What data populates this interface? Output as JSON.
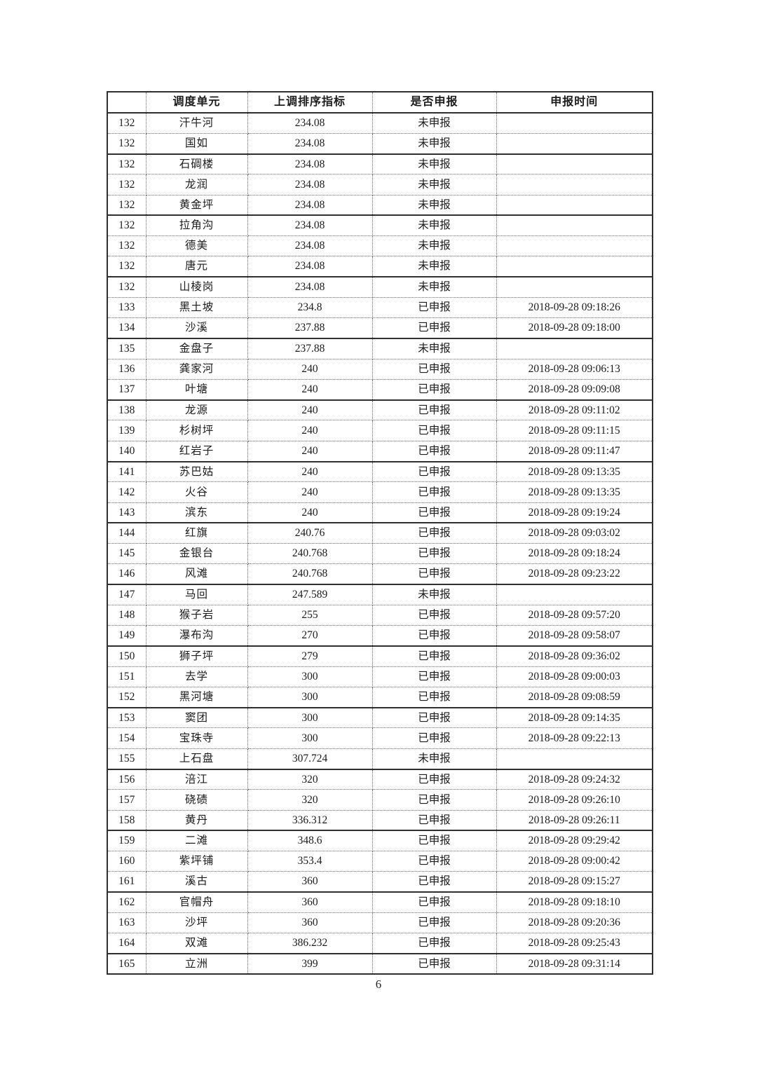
{
  "page": {
    "number": "6"
  },
  "table": {
    "headers": [
      "",
      "调度单元",
      "上调排序指标",
      "是否申报",
      "申报时间"
    ],
    "rows": [
      [
        "132",
        "汗牛河",
        "234.08",
        "未申报",
        ""
      ],
      [
        "132",
        "国如",
        "234.08",
        "未申报",
        ""
      ],
      [
        "132",
        "石碉楼",
        "234.08",
        "未申报",
        ""
      ],
      [
        "132",
        "龙润",
        "234.08",
        "未申报",
        ""
      ],
      [
        "132",
        "黄金坪",
        "234.08",
        "未申报",
        ""
      ],
      [
        "132",
        "拉角沟",
        "234.08",
        "未申报",
        ""
      ],
      [
        "132",
        "德美",
        "234.08",
        "未申报",
        ""
      ],
      [
        "132",
        "唐元",
        "234.08",
        "未申报",
        ""
      ],
      [
        "132",
        "山棱岗",
        "234.08",
        "未申报",
        ""
      ],
      [
        "133",
        "黑土坡",
        "234.8",
        "已申报",
        "2018-09-28 09:18:26"
      ],
      [
        "134",
        "沙溪",
        "237.88",
        "已申报",
        "2018-09-28 09:18:00"
      ],
      [
        "135",
        "金盘子",
        "237.88",
        "未申报",
        ""
      ],
      [
        "136",
        "龚家河",
        "240",
        "已申报",
        "2018-09-28 09:06:13"
      ],
      [
        "137",
        "叶塘",
        "240",
        "已申报",
        "2018-09-28 09:09:08"
      ],
      [
        "138",
        "龙源",
        "240",
        "已申报",
        "2018-09-28 09:11:02"
      ],
      [
        "139",
        "杉树坪",
        "240",
        "已申报",
        "2018-09-28 09:11:15"
      ],
      [
        "140",
        "红岩子",
        "240",
        "已申报",
        "2018-09-28 09:11:47"
      ],
      [
        "141",
        "苏巴姑",
        "240",
        "已申报",
        "2018-09-28 09:13:35"
      ],
      [
        "142",
        "火谷",
        "240",
        "已申报",
        "2018-09-28 09:13:35"
      ],
      [
        "143",
        "滨东",
        "240",
        "已申报",
        "2018-09-28 09:19:24"
      ],
      [
        "144",
        "红旗",
        "240.76",
        "已申报",
        "2018-09-28 09:03:02"
      ],
      [
        "145",
        "金银台",
        "240.768",
        "已申报",
        "2018-09-28 09:18:24"
      ],
      [
        "146",
        "风滩",
        "240.768",
        "已申报",
        "2018-09-28 09:23:22"
      ],
      [
        "147",
        "马回",
        "247.589",
        "未申报",
        ""
      ],
      [
        "148",
        "猴子岩",
        "255",
        "已申报",
        "2018-09-28 09:57:20"
      ],
      [
        "149",
        "瀑布沟",
        "270",
        "已申报",
        "2018-09-28 09:58:07"
      ],
      [
        "150",
        "狮子坪",
        "279",
        "已申报",
        "2018-09-28 09:36:02"
      ],
      [
        "151",
        "去学",
        "300",
        "已申报",
        "2018-09-28 09:00:03"
      ],
      [
        "152",
        "黑河塘",
        "300",
        "已申报",
        "2018-09-28 09:08:59"
      ],
      [
        "153",
        "窦团",
        "300",
        "已申报",
        "2018-09-28 09:14:35"
      ],
      [
        "154",
        "宝珠寺",
        "300",
        "已申报",
        "2018-09-28 09:22:13"
      ],
      [
        "155",
        "上石盘",
        "307.724",
        "未申报",
        ""
      ],
      [
        "156",
        "涪江",
        "320",
        "已申报",
        "2018-09-28 09:24:32"
      ],
      [
        "157",
        "硗碛",
        "320",
        "已申报",
        "2018-09-28 09:26:10"
      ],
      [
        "158",
        "黄丹",
        "336.312",
        "已申报",
        "2018-09-28 09:26:11"
      ],
      [
        "159",
        "二滩",
        "348.6",
        "已申报",
        "2018-09-28 09:29:42"
      ],
      [
        "160",
        "紫坪铺",
        "353.4",
        "已申报",
        "2018-09-28 09:00:42"
      ],
      [
        "161",
        "溪古",
        "360",
        "已申报",
        "2018-09-28 09:15:27"
      ],
      [
        "162",
        "官帽舟",
        "360",
        "已申报",
        "2018-09-28 09:18:10"
      ],
      [
        "163",
        "沙坪",
        "360",
        "已申报",
        "2018-09-28 09:20:36"
      ],
      [
        "164",
        "双滩",
        "386.232",
        "已申报",
        "2018-09-28 09:25:43"
      ],
      [
        "165",
        "立洲",
        "399",
        "已申报",
        "2018-09-28 09:31:14"
      ]
    ]
  }
}
